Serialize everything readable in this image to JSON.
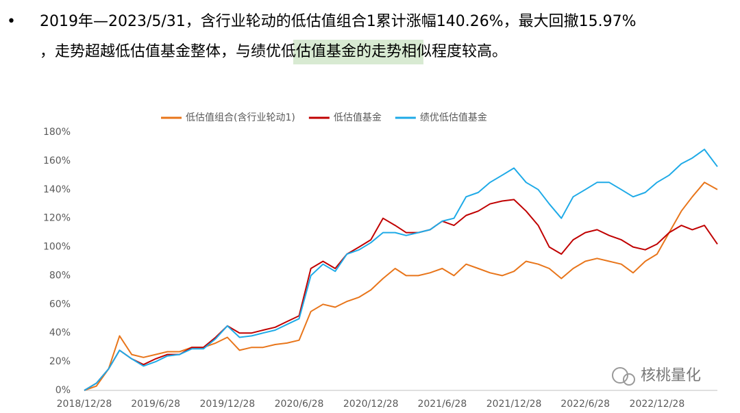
{
  "bullet": "•",
  "text": {
    "line1": "2019年—2023/5/31，含行业轮动的低估值组合1累计涨幅140.26%，最大回撤15.97%",
    "line2a": "，走势超越低估值基金整体，与",
    "highlight": "绩优低估值基金",
    "line2b": "的走势相似程度较高。"
  },
  "watermark": "核桃量化",
  "chart_data": {
    "type": "line",
    "x": [
      "2018/12/28",
      "2019/1/28",
      "2019/2/28",
      "2019/3/28",
      "2019/4/28",
      "2019/5/28",
      "2019/6/28",
      "2019/7/28",
      "2019/8/28",
      "2019/9/28",
      "2019/10/28",
      "2019/11/28",
      "2019/12/28",
      "2020/1/28",
      "2020/2/28",
      "2020/3/28",
      "2020/4/28",
      "2020/5/28",
      "2020/6/28",
      "2020/7/28",
      "2020/8/28",
      "2020/9/28",
      "2020/10/28",
      "2020/11/28",
      "2020/12/28",
      "2021/1/28",
      "2021/2/28",
      "2021/3/28",
      "2021/4/28",
      "2021/5/28",
      "2021/6/28",
      "2021/7/28",
      "2021/8/28",
      "2021/9/28",
      "2021/10/28",
      "2021/11/28",
      "2021/12/28",
      "2022/1/28",
      "2022/2/28",
      "2022/3/28",
      "2022/4/28",
      "2022/5/28",
      "2022/6/28",
      "2022/7/28",
      "2022/8/28",
      "2022/9/28",
      "2022/10/28",
      "2022/11/28",
      "2022/12/28",
      "2023/1/28",
      "2023/2/28",
      "2023/3/28",
      "2023/4/28",
      "2023/5/31"
    ],
    "xlim": [
      "2018/12/28",
      "2023/5/31"
    ],
    "xticks": [
      "2018/12/28",
      "2019/6/28",
      "2019/12/28",
      "2020/6/28",
      "2020/12/28",
      "2021/6/28",
      "2021/12/28",
      "2022/6/28",
      "2022/12/28"
    ],
    "ylim": [
      0,
      180
    ],
    "yticks": [
      {
        "value": 0,
        "label": "0%"
      },
      {
        "value": 20,
        "label": "20%"
      },
      {
        "value": 40,
        "label": "40%"
      },
      {
        "value": 60,
        "label": "60%"
      },
      {
        "value": 80,
        "label": "80%"
      },
      {
        "value": 100,
        "label": "100%"
      },
      {
        "value": 120,
        "label": "120%"
      },
      {
        "value": 140,
        "label": "140%"
      },
      {
        "value": 160,
        "label": "160%"
      },
      {
        "value": 180,
        "label": "180%"
      }
    ],
    "grid": false,
    "series": [
      {
        "name": "低估值组合(含行业轮动1)",
        "color": "#e8751a",
        "values": [
          0,
          3,
          15,
          38,
          25,
          23,
          25,
          27,
          27,
          30,
          30,
          33,
          37,
          28,
          30,
          30,
          32,
          33,
          35,
          55,
          60,
          58,
          62,
          65,
          70,
          78,
          85,
          80,
          80,
          82,
          85,
          80,
          88,
          85,
          82,
          80,
          83,
          90,
          88,
          85,
          78,
          85,
          90,
          92,
          90,
          88,
          82,
          90,
          95,
          110,
          125,
          135,
          145,
          140
        ]
      },
      {
        "name": "低估值基金",
        "color": "#c00000",
        "values": [
          0,
          5,
          15,
          28,
          22,
          18,
          22,
          25,
          25,
          30,
          30,
          37,
          45,
          40,
          40,
          42,
          44,
          48,
          52,
          85,
          90,
          85,
          95,
          100,
          105,
          120,
          115,
          110,
          110,
          112,
          118,
          115,
          122,
          125,
          130,
          132,
          133,
          125,
          115,
          100,
          95,
          105,
          110,
          112,
          108,
          105,
          100,
          98,
          102,
          110,
          115,
          112,
          115,
          102
        ]
      },
      {
        "name": "绩优低估值基金",
        "color": "#1eaae7",
        "values": [
          0,
          5,
          15,
          28,
          22,
          17,
          20,
          24,
          25,
          29,
          29,
          36,
          45,
          37,
          38,
          40,
          42,
          46,
          50,
          80,
          88,
          83,
          95,
          98,
          103,
          110,
          110,
          108,
          110,
          112,
          118,
          120,
          135,
          138,
          145,
          150,
          155,
          145,
          140,
          130,
          120,
          135,
          140,
          145,
          145,
          140,
          135,
          138,
          145,
          150,
          158,
          162,
          168,
          156
        ]
      }
    ]
  }
}
